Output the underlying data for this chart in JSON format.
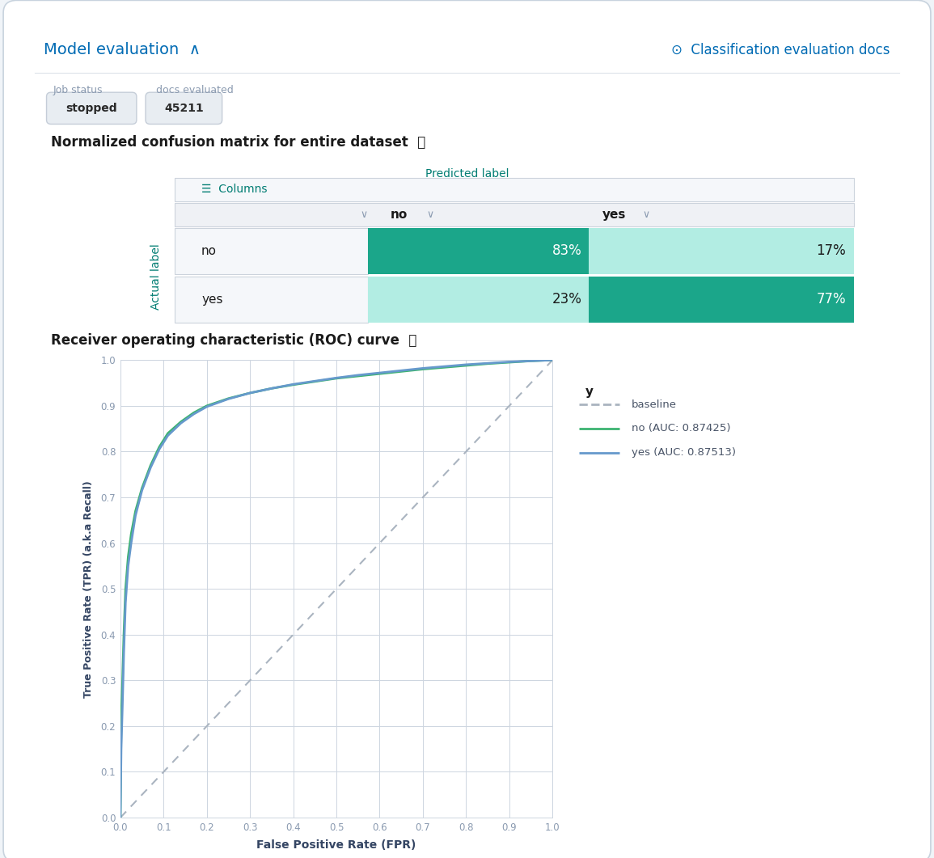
{
  "background_color": "#f0f4f8",
  "card_background": "#ffffff",
  "title_model_eval": "Model evaluation  ∧",
  "title_class_eval_docs": "⊙  Classification evaluation docs",
  "job_status_label": "Job status",
  "job_status_value": "stopped",
  "docs_eval_label": "docs evaluated",
  "docs_eval_value": "45211",
  "confusion_matrix_title": "Normalized confusion matrix for entire dataset",
  "predicted_label": "Predicted label",
  "actual_label": "Actual label",
  "columns_label": "Columns",
  "cm_row_labels": [
    "no",
    "yes"
  ],
  "cm_col_labels": [
    "no",
    "yes"
  ],
  "cm_values": [
    [
      83,
      17
    ],
    [
      23,
      77
    ]
  ],
  "cm_color_high": "#1ba68a",
  "cm_color_low": "#b2ede3",
  "roc_title": "Receiver operating characteristic (ROC) curve",
  "roc_xlabel": "False Positive Rate (FPR)",
  "roc_ylabel": "True Positive Rate (TPR) (a.k.a Recall)",
  "legend_title": "y",
  "legend_entries": [
    "baseline",
    "no (AUC: 0.87425)",
    "yes (AUC: 0.87513)"
  ],
  "line_color_no": "#3cb371",
  "line_color_yes": "#6699cc",
  "baseline_color": "#aab4c0",
  "roc_fpr_no": [
    0.0,
    0.002,
    0.005,
    0.008,
    0.012,
    0.018,
    0.025,
    0.035,
    0.05,
    0.07,
    0.09,
    0.11,
    0.14,
    0.17,
    0.2,
    0.25,
    0.3,
    0.35,
    0.4,
    0.45,
    0.5,
    0.55,
    0.6,
    0.65,
    0.7,
    0.75,
    0.8,
    0.85,
    0.9,
    0.95,
    1.0
  ],
  "roc_tpr_no": [
    0.0,
    0.22,
    0.3,
    0.4,
    0.5,
    0.57,
    0.62,
    0.67,
    0.72,
    0.77,
    0.81,
    0.84,
    0.865,
    0.885,
    0.9,
    0.916,
    0.928,
    0.938,
    0.946,
    0.953,
    0.96,
    0.965,
    0.97,
    0.975,
    0.98,
    0.984,
    0.988,
    0.992,
    0.995,
    0.998,
    1.0
  ],
  "roc_fpr_yes": [
    0.0,
    0.002,
    0.005,
    0.008,
    0.012,
    0.018,
    0.025,
    0.035,
    0.05,
    0.07,
    0.09,
    0.11,
    0.14,
    0.17,
    0.2,
    0.25,
    0.3,
    0.35,
    0.4,
    0.45,
    0.5,
    0.55,
    0.6,
    0.65,
    0.7,
    0.75,
    0.8,
    0.85,
    0.9,
    0.95,
    1.0
  ],
  "roc_tpr_yes": [
    0.0,
    0.15,
    0.25,
    0.36,
    0.47,
    0.55,
    0.6,
    0.66,
    0.715,
    0.765,
    0.805,
    0.835,
    0.862,
    0.882,
    0.898,
    0.915,
    0.928,
    0.938,
    0.947,
    0.954,
    0.961,
    0.967,
    0.972,
    0.977,
    0.982,
    0.986,
    0.99,
    0.993,
    0.996,
    0.998,
    1.0
  ],
  "grid_color": "#cdd5e0",
  "axis_color": "#cdd5e0",
  "tick_color": "#8a9ab0",
  "label_color": "#344563",
  "header_blue": "#006bb4",
  "header_teal": "#017d73",
  "badge_bg": "#e8edf2",
  "badge_border": "#c5cdd8"
}
